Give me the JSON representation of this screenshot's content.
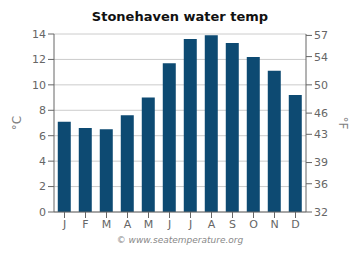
{
  "chart_data": {
    "type": "bar",
    "title": "Stonehaven water temp",
    "categories": [
      "J",
      "F",
      "M",
      "A",
      "M",
      "J",
      "J",
      "A",
      "S",
      "O",
      "N",
      "D"
    ],
    "values": [
      7.1,
      6.6,
      6.5,
      7.6,
      9.0,
      11.7,
      13.6,
      13.9,
      13.3,
      12.2,
      11.1,
      9.2
    ],
    "color": "#0d4a72",
    "ylabel": "°C",
    "y2label": "°F",
    "ylim": [
      0,
      14
    ],
    "yticks": [
      0,
      2,
      4,
      6,
      8,
      10,
      12,
      14
    ],
    "y2lim": [
      32,
      57.2
    ],
    "y2ticks": [
      32,
      36,
      39,
      43,
      46,
      50,
      54,
      57
    ],
    "grid": true,
    "annotation": "© www.seatemperature.org"
  }
}
